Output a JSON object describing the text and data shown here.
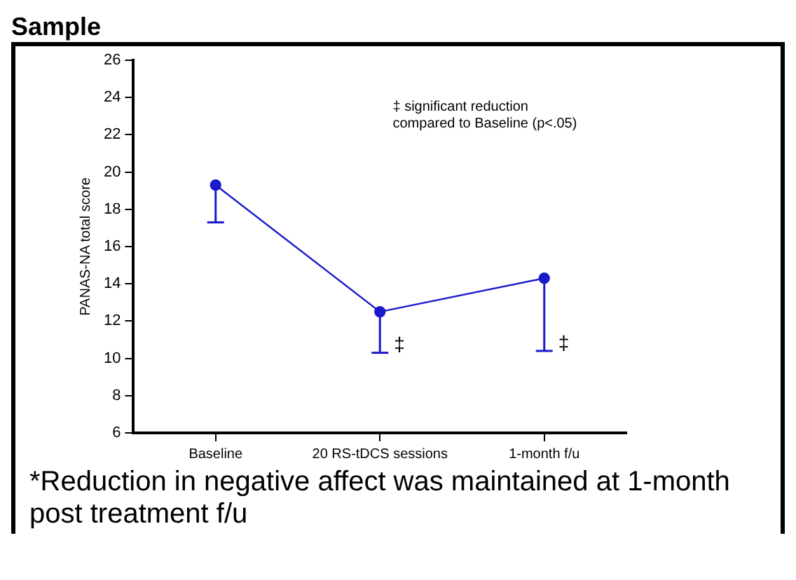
{
  "chart_data": {
    "type": "line",
    "title": "Sample",
    "ylabel": "PANAS-NA total score",
    "categories": [
      "Baseline",
      "20 RS-tDCS sessions",
      "1-month f/u"
    ],
    "series": [
      {
        "color": "#1a1acc",
        "values": [
          19.3,
          12.5,
          14.3
        ],
        "errors": [
          [
            17.3,
            19.3
          ],
          [
            10.3,
            12.5
          ],
          [
            10.4,
            14.3
          ]
        ]
      }
    ],
    "ylim": [
      6,
      26
    ],
    "yticks": [
      6,
      8,
      10,
      12,
      14,
      16,
      18,
      20,
      22,
      24,
      26
    ],
    "marker": "circle",
    "line_style": "solid",
    "grid": false,
    "legend": false,
    "annotations": [
      "‡ significant reduction\ncompared to Baseline (p<.05)",
      {
        "text": "‡",
        "x": "20 RS-tDCS sessions",
        "y": 10.3
      },
      {
        "text": "‡",
        "x": "1-month f/u",
        "y": 10.4
      },
      "*Reduction in negative affect was maintained at 1-month post treatment f/u"
    ]
  }
}
